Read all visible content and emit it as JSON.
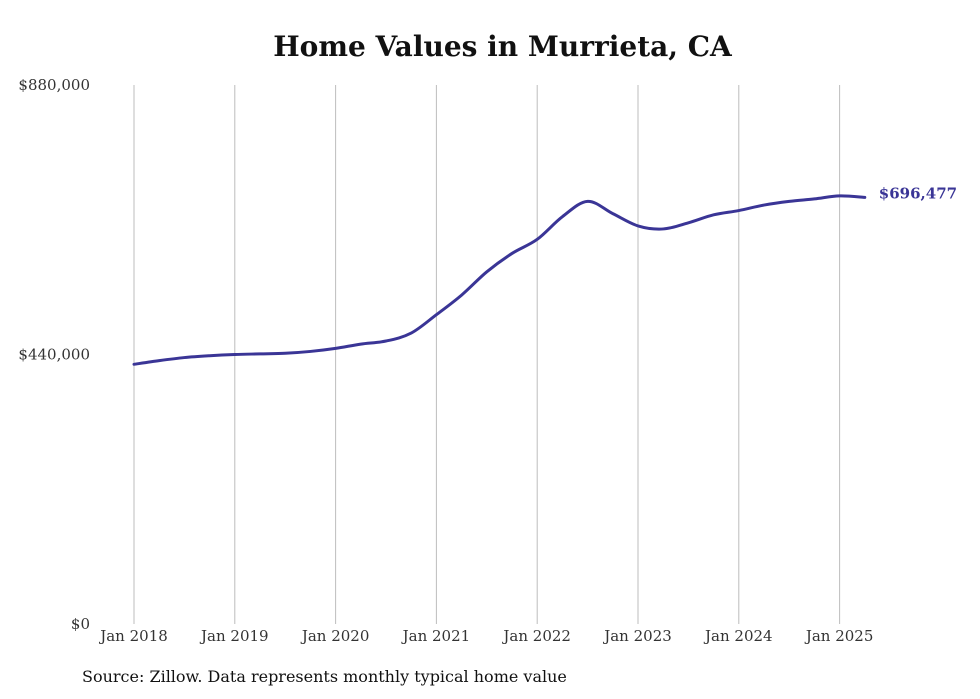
{
  "chart_data": {
    "type": "line",
    "title": "Home Values in Murrieta, CA",
    "xlabel": "",
    "ylabel": "",
    "ylim": [
      0,
      880000
    ],
    "y_ticks": [
      0,
      440000,
      880000
    ],
    "y_tick_labels": [
      "$0",
      "$440,000",
      "$880,000"
    ],
    "x_ticks": [
      "2018-01",
      "2019-01",
      "2020-01",
      "2021-01",
      "2022-01",
      "2023-01",
      "2024-01",
      "2025-01"
    ],
    "x_tick_labels": [
      "Jan 2018",
      "Jan 2019",
      "Jan 2020",
      "Jan 2021",
      "Jan 2022",
      "Jan 2023",
      "Jan 2024",
      "Jan 2025"
    ],
    "grid": "vertical",
    "line_color": "#3a3596",
    "end_label": "$696,477",
    "series": [
      {
        "x": [
          "2018-01",
          "2018-04",
          "2018-07",
          "2018-10",
          "2019-01",
          "2019-04",
          "2019-07",
          "2019-10",
          "2020-01",
          "2020-04",
          "2020-07",
          "2020-10",
          "2021-01",
          "2021-04",
          "2021-07",
          "2021-10",
          "2022-01",
          "2022-04",
          "2022-07",
          "2022-10",
          "2023-01",
          "2023-04",
          "2023-07",
          "2023-10",
          "2024-01",
          "2024-04",
          "2024-07",
          "2024-10",
          "2025-01",
          "2025-04"
        ],
        "values": [
          424000,
          430000,
          435000,
          438000,
          440000,
          441000,
          442000,
          445000,
          450000,
          457000,
          462000,
          475000,
          505000,
          537000,
          575000,
          605000,
          628000,
          665000,
          690000,
          670000,
          650000,
          645000,
          655000,
          668000,
          675000,
          684000,
          690000,
          694000,
          699000,
          696477
        ]
      }
    ]
  },
  "source_note": "Source: Zillow. Data represents monthly typical home value"
}
